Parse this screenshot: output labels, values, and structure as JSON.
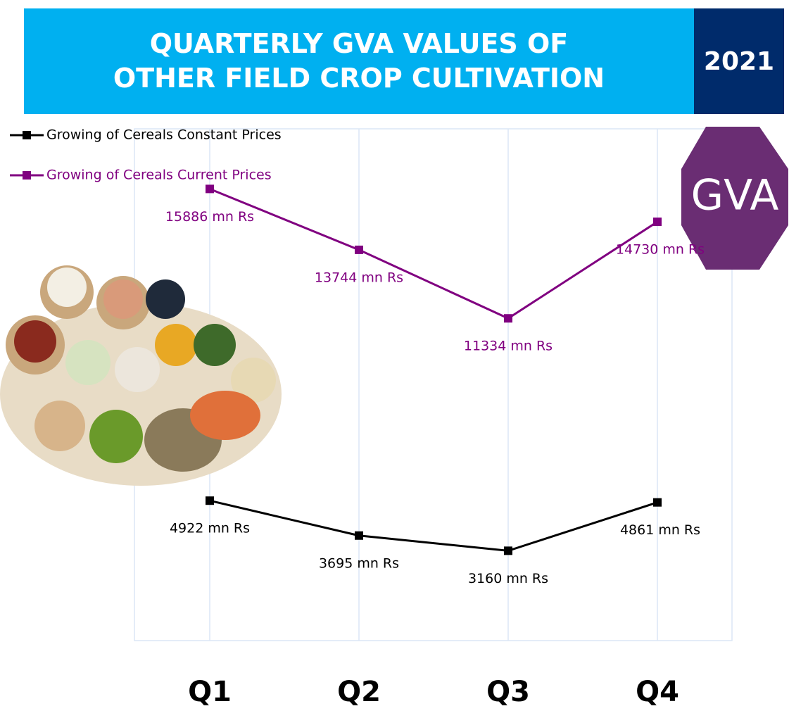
{
  "chart_data": {
    "type": "line",
    "title": "QUARTERLY GVA VALUES OF OTHER FIELD CROP CULTIVATION",
    "categories": [
      "Q1",
      "Q2",
      "Q3",
      "Q4"
    ],
    "series": [
      {
        "name": "Growing of Cereals Constant Prices",
        "color": "#000000",
        "values": [
          4922,
          3695,
          3160,
          4861
        ],
        "value_labels": [
          "4922 mn Rs",
          "3695 mn Rs",
          "3160 mn Rs",
          "4861 mn Rs"
        ]
      },
      {
        "name": "Growing of Cereals Current Prices",
        "color": "#800080",
        "values": [
          15886,
          13744,
          11334,
          14730
        ],
        "value_labels": [
          "15886 mn Rs",
          "13744 mn Rs",
          "11334 mn Rs",
          "14730 mn Rs"
        ]
      }
    ],
    "ylim": [
      0,
      18000
    ],
    "grid": true,
    "legend": "top-left"
  },
  "header": {
    "year": "2021",
    "badge": "GVA"
  }
}
